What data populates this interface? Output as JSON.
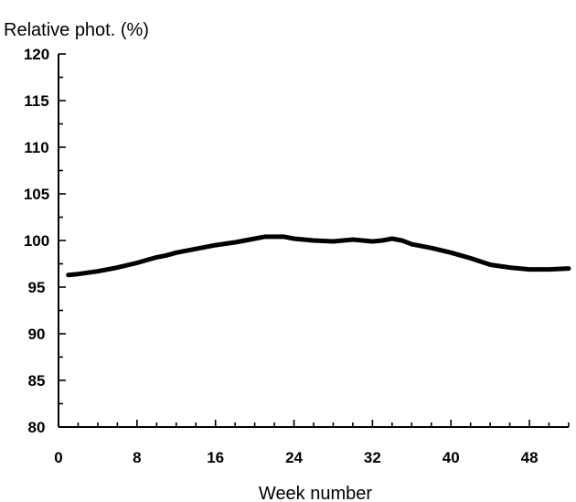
{
  "chart_data": {
    "type": "line",
    "title": "",
    "ylabel": "Relative phot. (%)",
    "xlabel": "Week number",
    "xlim": [
      0,
      52
    ],
    "ylim": [
      80,
      120
    ],
    "x_ticks": [
      0,
      8,
      16,
      24,
      32,
      40,
      48
    ],
    "y_ticks": [
      80,
      85,
      90,
      95,
      100,
      105,
      110,
      115,
      120
    ],
    "grid": false,
    "legend": "none",
    "series": [
      {
        "x": [
          1,
          2,
          4,
          6,
          8,
          9,
          10,
          11,
          12,
          14,
          16,
          18,
          20,
          21,
          22,
          23,
          24,
          26,
          28,
          30,
          32,
          33,
          34,
          35,
          36,
          38,
          40,
          42,
          44,
          46,
          48,
          50,
          52
        ],
        "y": [
          96.3,
          96.4,
          96.7,
          97.1,
          97.6,
          97.9,
          98.2,
          98.4,
          98.7,
          99.1,
          99.5,
          99.8,
          100.2,
          100.4,
          100.4,
          100.4,
          100.2,
          100.0,
          99.9,
          100.1,
          99.9,
          100.0,
          100.2,
          100.0,
          99.6,
          99.2,
          98.7,
          98.1,
          97.4,
          97.1,
          96.9,
          96.9,
          97.0
        ],
        "color": "#000000"
      }
    ]
  }
}
